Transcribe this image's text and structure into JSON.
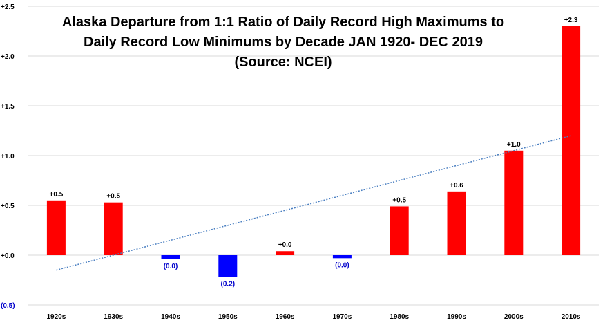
{
  "chart_data": {
    "type": "bar",
    "title_lines": [
      "Alaska Departure from 1:1 Ratio of Daily Record High Maximums to",
      "Daily Record Low Minimums by Decade JAN 1920- DEC 2019",
      "(Source: NCEI)"
    ],
    "categories": [
      "1920s",
      "1930s",
      "1940s",
      "1950s",
      "1960s",
      "1970s",
      "1980s",
      "1990s",
      "2000s",
      "2010s"
    ],
    "values": [
      0.55,
      0.53,
      -0.04,
      -0.22,
      0.04,
      -0.03,
      0.49,
      0.64,
      1.05,
      2.3
    ],
    "data_labels": [
      "+0.5",
      "+0.5",
      "(0.0)",
      "(0.2)",
      "+0.0",
      "(0.0)",
      "+0.5",
      "+0.6",
      "+1.0",
      "+2.3"
    ],
    "ylim": [
      -0.5,
      2.5
    ],
    "yticks": [
      2.5,
      2.0,
      1.5,
      1.0,
      0.5,
      0.0,
      -0.5
    ],
    "ytick_labels": [
      "+2.5",
      "+2.0",
      "+1.5",
      "+1.0",
      "+0.5",
      "+0.0",
      "(0.5)"
    ],
    "trendline": {
      "type": "linear",
      "style": "dotted",
      "start": -0.15,
      "end": 1.2
    },
    "grid": true,
    "legend": "none",
    "xlabel": "",
    "ylabel": "",
    "colors": {
      "positive": "#ff0000",
      "negative": "#0000ff",
      "negative_label": "#0000cc",
      "trendline": "#4a7fc1",
      "grid": "#d9d9d9"
    }
  }
}
